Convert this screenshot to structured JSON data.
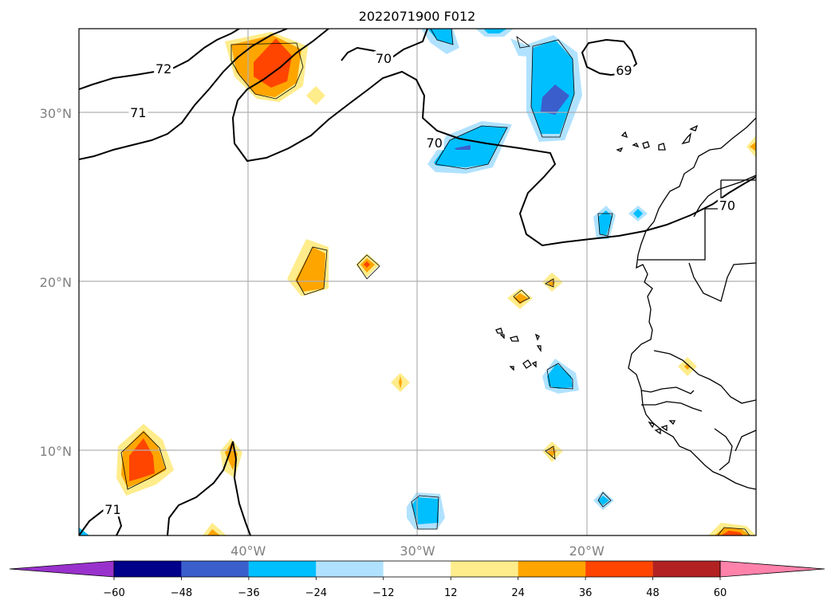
{
  "chart_data": {
    "type": "heatmap",
    "title": "2022071900 F012",
    "x_ticks": [
      "40°W",
      "30°W",
      "20°W"
    ],
    "y_ticks": [
      "30°N",
      "20°N",
      "10°N"
    ],
    "lon_range": [
      -50,
      -10
    ],
    "lat_range": [
      5,
      35
    ],
    "grid": true,
    "colorbar": {
      "ticks": [
        "−60",
        "−48",
        "−36",
        "−24",
        "−12",
        "12",
        "24",
        "36",
        "48",
        "60"
      ],
      "tick_values": [
        -60,
        -48,
        -36,
        -24,
        -12,
        12,
        24,
        36,
        48,
        60
      ],
      "colors": [
        "#9932cc",
        "#00008b",
        "#3a5fcd",
        "#00bfff",
        "#b0e2ff",
        "#ffffff",
        "#ffec8b",
        "#ffa500",
        "#ff4500",
        "#b22222",
        "#ff82ab"
      ],
      "extend": "both",
      "placement": "bottom"
    },
    "contour_labels": [
      {
        "text": "72",
        "lon": -45,
        "lat": 32.6
      },
      {
        "text": "71",
        "lon": -46.5,
        "lat": 30.0
      },
      {
        "text": "70",
        "lon": -32,
        "lat": 33.2
      },
      {
        "text": "70",
        "lon": -29,
        "lat": 28.2
      },
      {
        "text": "69",
        "lon": -17.8,
        "lat": 32.5
      },
      {
        "text": "70",
        "lon": -11.7,
        "lat": 24.5
      },
      {
        "text": "71",
        "lon": -48,
        "lat": 6.5
      }
    ]
  }
}
